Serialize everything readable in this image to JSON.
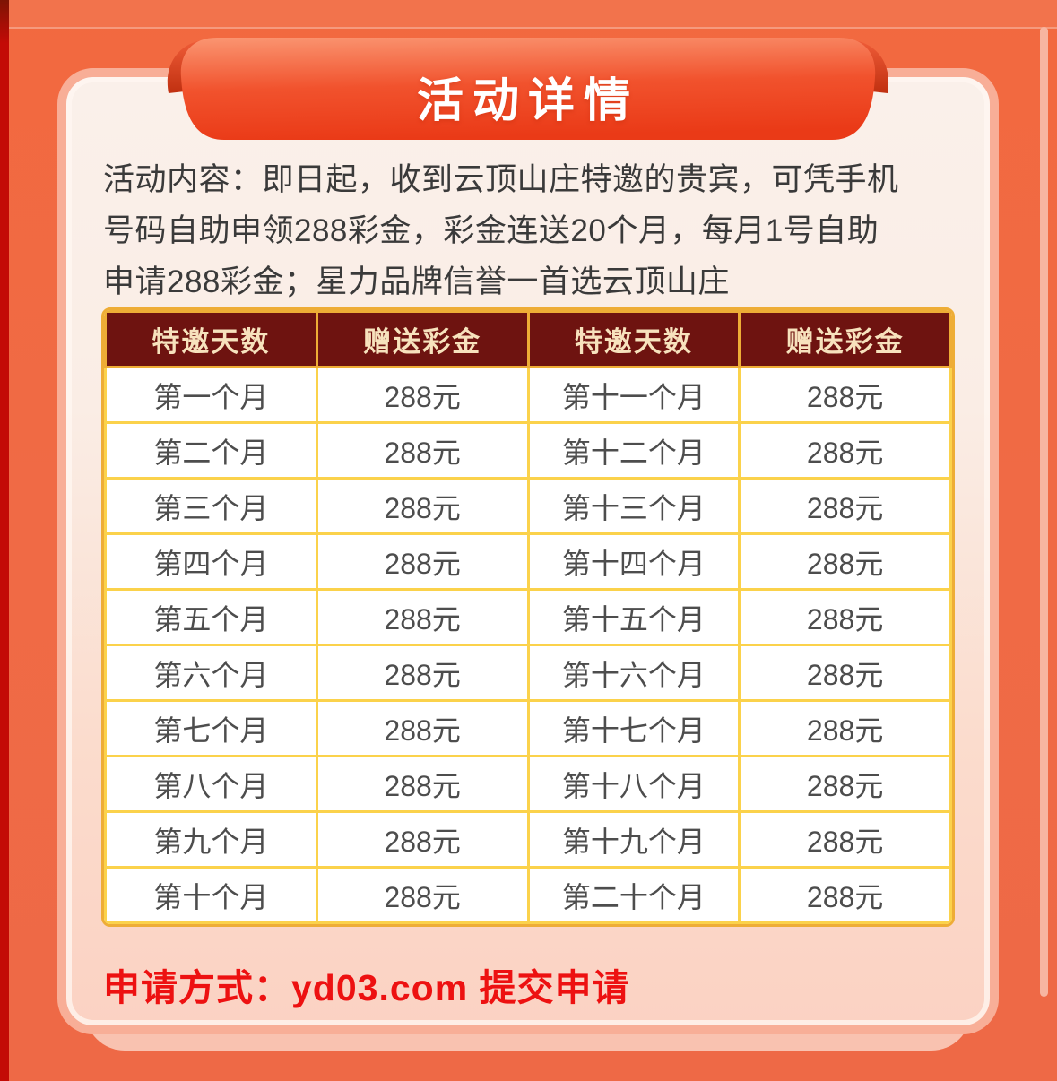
{
  "page": {
    "title_banner": "活动详情",
    "description_lines": [
      "活动内容：即日起，收到云顶山庄特邀的贵宾，可凭手机",
      "号码自助申领288彩金，彩金连送20个月，每月1号自助",
      "申请288彩金；星力品牌信誉一首选云顶山庄"
    ],
    "apply_line": "申请方式：yd03.com 提交申请"
  },
  "table": {
    "headers": [
      "特邀天数",
      "赠送彩金",
      "特邀天数",
      "赠送彩金"
    ],
    "rows": [
      [
        "第一个月",
        "288元",
        "第十一个月",
        "288元"
      ],
      [
        "第二个月",
        "288元",
        "第十二个月",
        "288元"
      ],
      [
        "第三个月",
        "288元",
        "第十三个月",
        "288元"
      ],
      [
        "第四个月",
        "288元",
        "第十四个月",
        "288元"
      ],
      [
        "第五个月",
        "288元",
        "第十五个月",
        "288元"
      ],
      [
        "第六个月",
        "288元",
        "第十六个月",
        "288元"
      ],
      [
        "第七个月",
        "288元",
        "第十七个月",
        "288元"
      ],
      [
        "第八个月",
        "288元",
        "第十八个月",
        "288元"
      ],
      [
        "第九个月",
        "288元",
        "第十九个月",
        "288元"
      ],
      [
        "第十个月",
        "288元",
        "第二十个月",
        "288元"
      ]
    ]
  },
  "colors": {
    "background_orange": "#f2693f",
    "left_strip_red": "#c30b06",
    "right_stripe_pink": "#f7b5a1",
    "ribbon_gradient_top": "#fa9470",
    "ribbon_gradient_bottom": "#ea3a17",
    "ribbon_curl": "#cf3a16",
    "card_border": "#f8ae97",
    "card_bg_top": "#faf0ea",
    "card_bg_bottom": "#fbd2c3",
    "card_under": "#f9c2b0",
    "table_header_bg": "#6e1310",
    "table_header_text": "#f7e2bd",
    "table_border": "#fbd24b",
    "table_outer_border": "#eead36",
    "cell_text": "#4d4d4d",
    "description_text": "#3a3a3a",
    "title_text": "#ffffff",
    "apply_text": "#ed1111"
  }
}
